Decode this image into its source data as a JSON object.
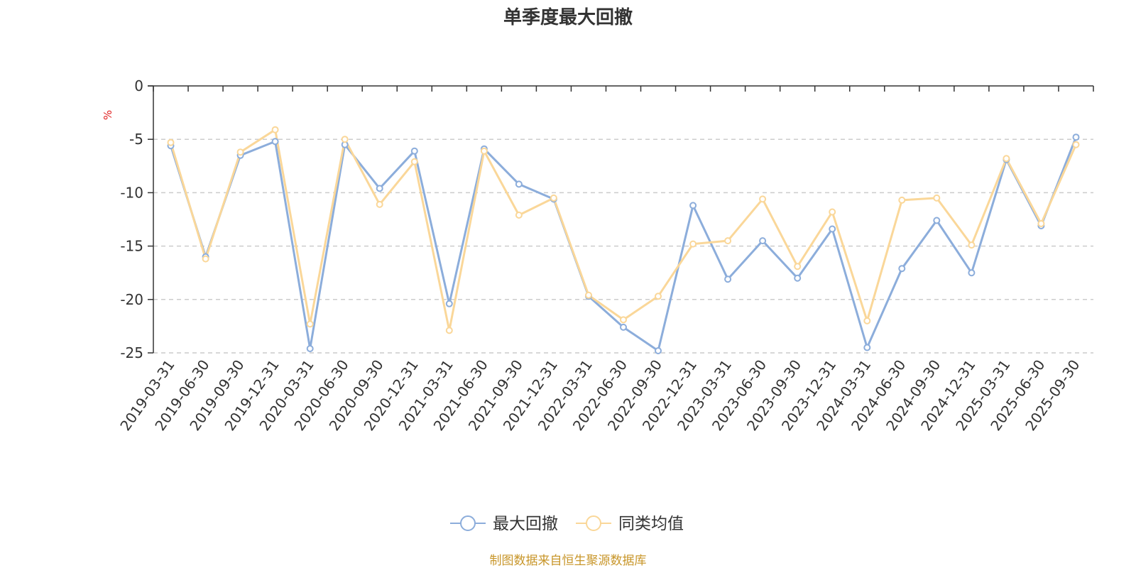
{
  "chart_data": {
    "type": "line",
    "title": "单季度最大回撤",
    "ylabel": "%",
    "xlabel": "",
    "ylim": [
      -25,
      0
    ],
    "yticks": [
      0,
      -5,
      -10,
      -15,
      -20,
      -25
    ],
    "ytick_labels": [
      "0",
      "-5",
      "-10",
      "-15",
      "-20",
      "-25"
    ],
    "grid": true,
    "legend_position": "bottom-center",
    "categories": [
      "2019-03-31",
      "2019-06-30",
      "2019-09-30",
      "2019-12-31",
      "2020-03-31",
      "2020-06-30",
      "2020-09-30",
      "2020-12-31",
      "2021-03-31",
      "2021-06-30",
      "2021-09-30",
      "2021-12-31",
      "2022-03-31",
      "2022-06-30",
      "2022-09-30",
      "2022-12-31",
      "2023-03-31",
      "2023-06-30",
      "2023-09-30",
      "2023-12-31",
      "2024-03-31",
      "2024-06-30",
      "2024-09-30",
      "2024-12-31",
      "2025-03-31",
      "2025-06-30",
      "2025-09-30"
    ],
    "series": [
      {
        "name": "最大回撤",
        "color": "#8caddb",
        "values": [
          -5.6,
          -16.0,
          -6.5,
          -5.2,
          -24.6,
          -5.5,
          -9.6,
          -6.1,
          -20.4,
          -5.9,
          -9.2,
          -10.6,
          -19.7,
          -22.6,
          -24.8,
          -11.2,
          -18.1,
          -14.5,
          -18.0,
          -13.4,
          -24.5,
          -17.1,
          -12.6,
          -17.5,
          -6.9,
          -13.1,
          -4.8
        ]
      },
      {
        "name": "同类均值",
        "color": "#fad799",
        "values": [
          -5.3,
          -16.2,
          -6.2,
          -4.1,
          -22.3,
          -5.0,
          -11.1,
          -7.1,
          -22.9,
          -6.1,
          -12.1,
          -10.5,
          -19.6,
          -21.9,
          -19.7,
          -14.8,
          -14.5,
          -10.6,
          -16.9,
          -11.8,
          -22.0,
          -10.7,
          -10.5,
          -14.9,
          -6.8,
          -12.9,
          -5.5
        ]
      }
    ]
  },
  "source_text": "制图数据来自恒生聚源数据库"
}
